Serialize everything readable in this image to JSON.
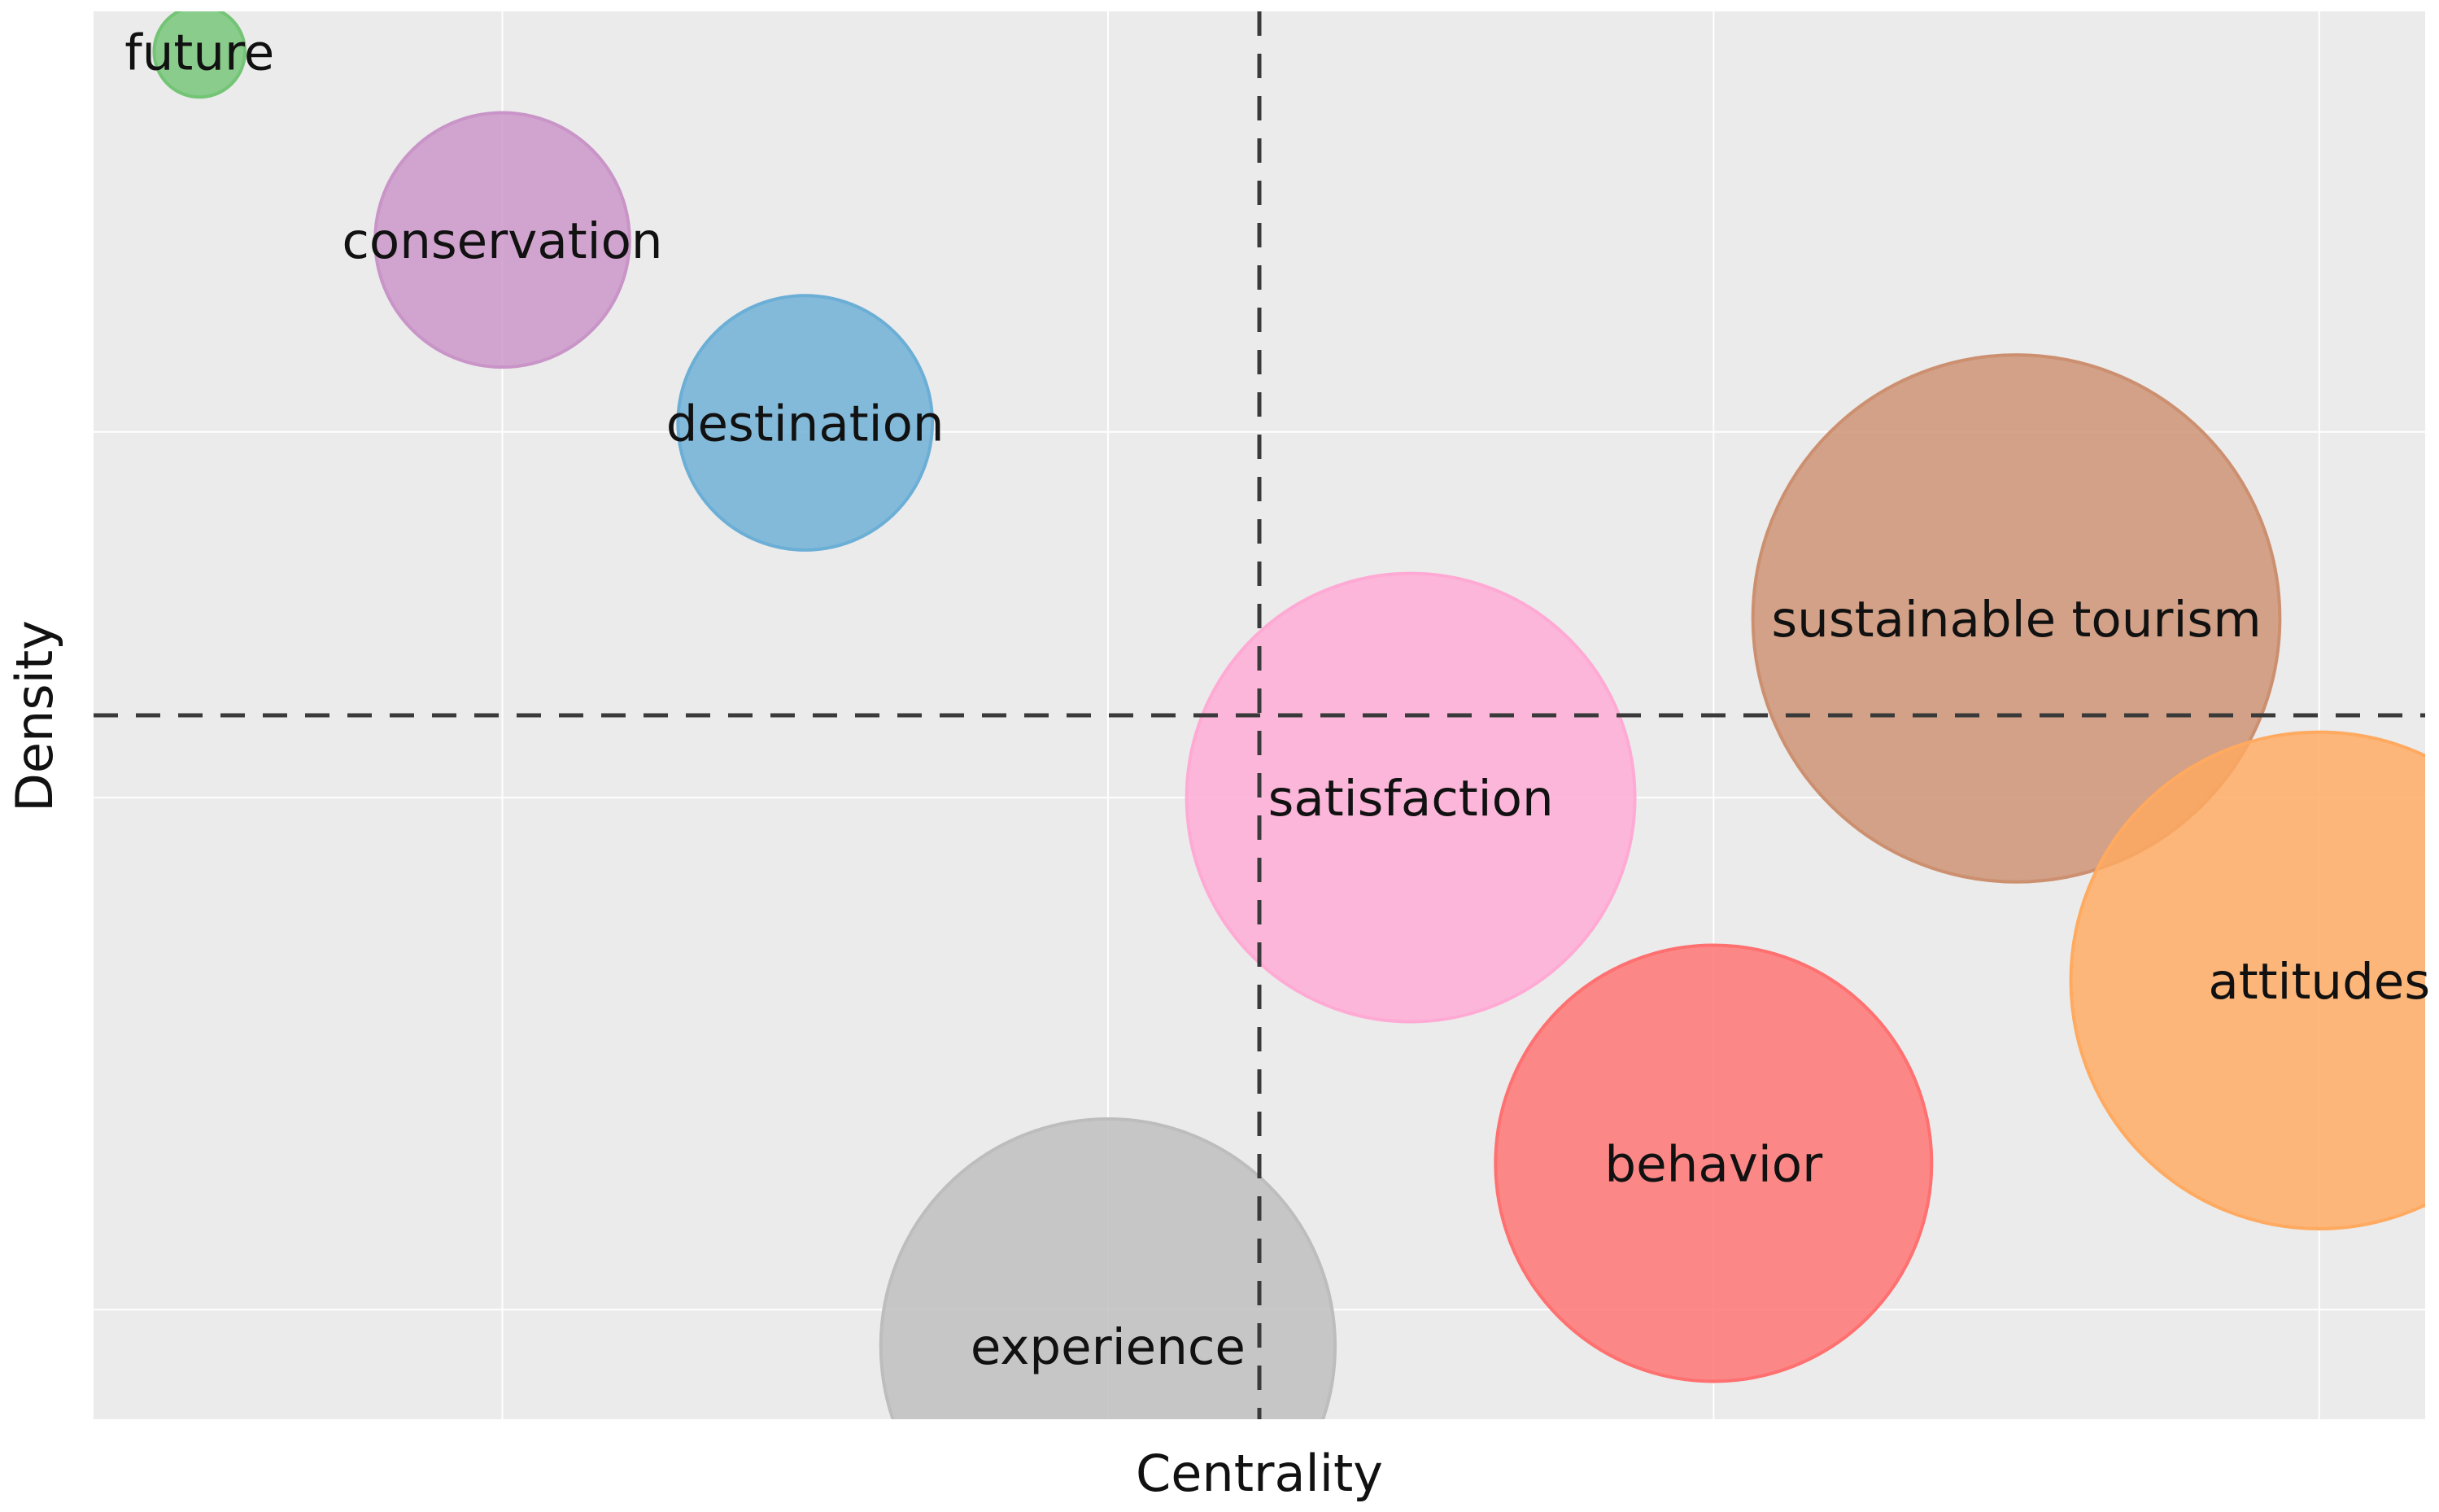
{
  "chart_data": {
    "type": "scatter",
    "subtype": "bubble",
    "title": "",
    "xlabel": "Centrality",
    "ylabel": "Density",
    "xlim": [
      0,
      7.7
    ],
    "ylim": [
      0,
      7.7
    ],
    "x_gridlines": [
      1.35,
      3.35,
      5.35,
      7.35
    ],
    "y_gridlines": [
      0.6,
      3.4,
      5.4
    ],
    "reference_lines": {
      "x": 3.85,
      "y": 3.85
    },
    "grid": true,
    "legend": "none",
    "background": "#ebebeb",
    "points": [
      {
        "label": "future",
        "x": 0.35,
        "y": 7.48,
        "size": 0.15,
        "color": "#74c476"
      },
      {
        "label": "conservation",
        "x": 1.35,
        "y": 6.45,
        "size": 0.42,
        "color": "#c994c7"
      },
      {
        "label": "destination",
        "x": 2.35,
        "y": 5.45,
        "size": 0.42,
        "color": "#6baed6"
      },
      {
        "label": "sustainable tourism",
        "x": 6.35,
        "y": 4.38,
        "size": 0.87,
        "color": "#cc9070"
      },
      {
        "label": "satisfaction",
        "x": 4.35,
        "y": 3.4,
        "size": 0.74,
        "color": "#ffaad4"
      },
      {
        "label": "attitudes",
        "x": 7.35,
        "y": 2.4,
        "size": 0.82,
        "color": "#ffaa60"
      },
      {
        "label": "behavior",
        "x": 5.35,
        "y": 1.4,
        "size": 0.72,
        "color": "#ff7070"
      },
      {
        "label": "experience",
        "x": 3.35,
        "y": 0.4,
        "size": 0.75,
        "color": "#bdbdbd"
      }
    ]
  }
}
